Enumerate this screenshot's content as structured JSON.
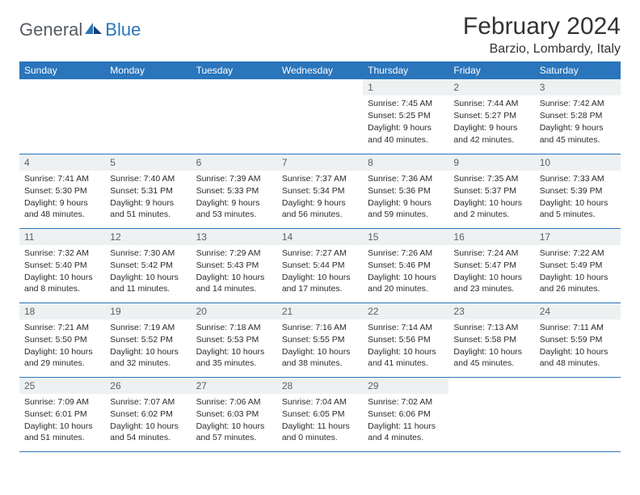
{
  "brand": {
    "part1": "General",
    "part2": "Blue"
  },
  "title": "February 2024",
  "location": "Barzio, Lombardy, Italy",
  "header_bg": "#2a75bb",
  "header_fg": "#ffffff",
  "daynum_bg": "#eef1f2",
  "daynum_fg": "#5a5f63",
  "border_color": "#2a75bb",
  "days_of_week": [
    "Sunday",
    "Monday",
    "Tuesday",
    "Wednesday",
    "Thursday",
    "Friday",
    "Saturday"
  ],
  "weeks": [
    [
      null,
      null,
      null,
      null,
      {
        "n": "1",
        "sunrise": "Sunrise: 7:45 AM",
        "sunset": "Sunset: 5:25 PM",
        "day": "Daylight: 9 hours and 40 minutes."
      },
      {
        "n": "2",
        "sunrise": "Sunrise: 7:44 AM",
        "sunset": "Sunset: 5:27 PM",
        "day": "Daylight: 9 hours and 42 minutes."
      },
      {
        "n": "3",
        "sunrise": "Sunrise: 7:42 AM",
        "sunset": "Sunset: 5:28 PM",
        "day": "Daylight: 9 hours and 45 minutes."
      }
    ],
    [
      {
        "n": "4",
        "sunrise": "Sunrise: 7:41 AM",
        "sunset": "Sunset: 5:30 PM",
        "day": "Daylight: 9 hours and 48 minutes."
      },
      {
        "n": "5",
        "sunrise": "Sunrise: 7:40 AM",
        "sunset": "Sunset: 5:31 PM",
        "day": "Daylight: 9 hours and 51 minutes."
      },
      {
        "n": "6",
        "sunrise": "Sunrise: 7:39 AM",
        "sunset": "Sunset: 5:33 PM",
        "day": "Daylight: 9 hours and 53 minutes."
      },
      {
        "n": "7",
        "sunrise": "Sunrise: 7:37 AM",
        "sunset": "Sunset: 5:34 PM",
        "day": "Daylight: 9 hours and 56 minutes."
      },
      {
        "n": "8",
        "sunrise": "Sunrise: 7:36 AM",
        "sunset": "Sunset: 5:36 PM",
        "day": "Daylight: 9 hours and 59 minutes."
      },
      {
        "n": "9",
        "sunrise": "Sunrise: 7:35 AM",
        "sunset": "Sunset: 5:37 PM",
        "day": "Daylight: 10 hours and 2 minutes."
      },
      {
        "n": "10",
        "sunrise": "Sunrise: 7:33 AM",
        "sunset": "Sunset: 5:39 PM",
        "day": "Daylight: 10 hours and 5 minutes."
      }
    ],
    [
      {
        "n": "11",
        "sunrise": "Sunrise: 7:32 AM",
        "sunset": "Sunset: 5:40 PM",
        "day": "Daylight: 10 hours and 8 minutes."
      },
      {
        "n": "12",
        "sunrise": "Sunrise: 7:30 AM",
        "sunset": "Sunset: 5:42 PM",
        "day": "Daylight: 10 hours and 11 minutes."
      },
      {
        "n": "13",
        "sunrise": "Sunrise: 7:29 AM",
        "sunset": "Sunset: 5:43 PM",
        "day": "Daylight: 10 hours and 14 minutes."
      },
      {
        "n": "14",
        "sunrise": "Sunrise: 7:27 AM",
        "sunset": "Sunset: 5:44 PM",
        "day": "Daylight: 10 hours and 17 minutes."
      },
      {
        "n": "15",
        "sunrise": "Sunrise: 7:26 AM",
        "sunset": "Sunset: 5:46 PM",
        "day": "Daylight: 10 hours and 20 minutes."
      },
      {
        "n": "16",
        "sunrise": "Sunrise: 7:24 AM",
        "sunset": "Sunset: 5:47 PM",
        "day": "Daylight: 10 hours and 23 minutes."
      },
      {
        "n": "17",
        "sunrise": "Sunrise: 7:22 AM",
        "sunset": "Sunset: 5:49 PM",
        "day": "Daylight: 10 hours and 26 minutes."
      }
    ],
    [
      {
        "n": "18",
        "sunrise": "Sunrise: 7:21 AM",
        "sunset": "Sunset: 5:50 PM",
        "day": "Daylight: 10 hours and 29 minutes."
      },
      {
        "n": "19",
        "sunrise": "Sunrise: 7:19 AM",
        "sunset": "Sunset: 5:52 PM",
        "day": "Daylight: 10 hours and 32 minutes."
      },
      {
        "n": "20",
        "sunrise": "Sunrise: 7:18 AM",
        "sunset": "Sunset: 5:53 PM",
        "day": "Daylight: 10 hours and 35 minutes."
      },
      {
        "n": "21",
        "sunrise": "Sunrise: 7:16 AM",
        "sunset": "Sunset: 5:55 PM",
        "day": "Daylight: 10 hours and 38 minutes."
      },
      {
        "n": "22",
        "sunrise": "Sunrise: 7:14 AM",
        "sunset": "Sunset: 5:56 PM",
        "day": "Daylight: 10 hours and 41 minutes."
      },
      {
        "n": "23",
        "sunrise": "Sunrise: 7:13 AM",
        "sunset": "Sunset: 5:58 PM",
        "day": "Daylight: 10 hours and 45 minutes."
      },
      {
        "n": "24",
        "sunrise": "Sunrise: 7:11 AM",
        "sunset": "Sunset: 5:59 PM",
        "day": "Daylight: 10 hours and 48 minutes."
      }
    ],
    [
      {
        "n": "25",
        "sunrise": "Sunrise: 7:09 AM",
        "sunset": "Sunset: 6:01 PM",
        "day": "Daylight: 10 hours and 51 minutes."
      },
      {
        "n": "26",
        "sunrise": "Sunrise: 7:07 AM",
        "sunset": "Sunset: 6:02 PM",
        "day": "Daylight: 10 hours and 54 minutes."
      },
      {
        "n": "27",
        "sunrise": "Sunrise: 7:06 AM",
        "sunset": "Sunset: 6:03 PM",
        "day": "Daylight: 10 hours and 57 minutes."
      },
      {
        "n": "28",
        "sunrise": "Sunrise: 7:04 AM",
        "sunset": "Sunset: 6:05 PM",
        "day": "Daylight: 11 hours and 0 minutes."
      },
      {
        "n": "29",
        "sunrise": "Sunrise: 7:02 AM",
        "sunset": "Sunset: 6:06 PM",
        "day": "Daylight: 11 hours and 4 minutes."
      },
      null,
      null
    ]
  ]
}
